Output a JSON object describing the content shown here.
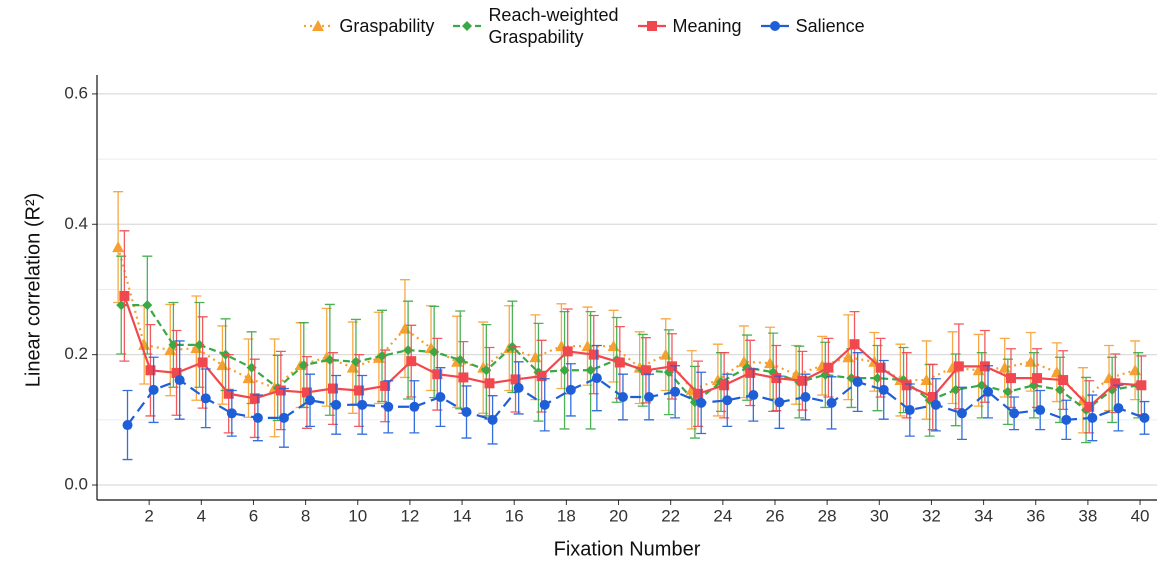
{
  "chart_data": {
    "type": "errorbar-line",
    "x_label": "Fixation Number",
    "y_label": "Linear correlation (R²)",
    "x": [
      1,
      2,
      3,
      4,
      5,
      6,
      7,
      8,
      9,
      10,
      11,
      12,
      13,
      14,
      15,
      16,
      17,
      18,
      19,
      20,
      21,
      22,
      23,
      24,
      25,
      26,
      27,
      28,
      29,
      30,
      31,
      32,
      33,
      34,
      35,
      36,
      37,
      38,
      39,
      40
    ],
    "xlim": [
      0,
      40.65
    ],
    "xticks": [
      2,
      4,
      6,
      8,
      10,
      12,
      14,
      16,
      18,
      20,
      22,
      24,
      26,
      28,
      30,
      32,
      34,
      36,
      38,
      40
    ],
    "ylim": [
      -0.023,
      0.629
    ],
    "yticks": [
      {
        "value": 0,
        "label": "0.0"
      },
      0.2,
      0.4,
      0.6
    ],
    "y_minor_grid": [
      0.1,
      0.3,
      0.5
    ],
    "grid": true,
    "legend": "top",
    "series": [
      {
        "name": "Graspability",
        "color": "#f5a030",
        "linestyle": "dotted",
        "marker": "triangle",
        "offset": -0.19,
        "values": [
          0.365,
          0.215,
          0.207,
          0.21,
          0.184,
          0.164,
          0.149,
          0.184,
          0.196,
          0.18,
          0.195,
          0.24,
          0.21,
          0.189,
          0.18,
          0.21,
          0.196,
          0.213,
          0.213,
          0.213,
          0.18,
          0.2,
          0.146,
          0.161,
          0.189,
          0.187,
          0.169,
          0.183,
          0.196,
          0.189,
          0.161,
          0.161,
          0.18,
          0.176,
          0.18,
          0.189,
          0.173,
          0.13,
          0.164,
          0.176
        ],
        "errors": [
          0.085,
          0.06,
          0.07,
          0.08,
          0.06,
          0.06,
          0.075,
          0.065,
          0.075,
          0.07,
          0.07,
          0.075,
          0.065,
          0.07,
          0.07,
          0.065,
          0.065,
          0.065,
          0.06,
          0.055,
          0.055,
          0.055,
          0.06,
          0.055,
          0.055,
          0.055,
          0.045,
          0.045,
          0.065,
          0.045,
          0.055,
          0.06,
          0.055,
          0.055,
          0.045,
          0.045,
          0.045,
          0.05,
          0.05,
          0.045
        ]
      },
      {
        "name": "Reach-weighted\nGraspability",
        "color": "#3aa845",
        "linestyle": "dashed",
        "marker": "diamond",
        "offset": -0.07,
        "values": [
          0.276,
          0.276,
          0.215,
          0.215,
          0.2,
          0.18,
          0.149,
          0.184,
          0.192,
          0.189,
          0.198,
          0.207,
          0.204,
          0.192,
          0.176,
          0.212,
          0.173,
          0.176,
          0.176,
          0.192,
          0.176,
          0.173,
          0.127,
          0.158,
          0.18,
          0.173,
          0.158,
          0.169,
          0.164,
          0.164,
          0.161,
          0.13,
          0.146,
          0.153,
          0.143,
          0.153,
          0.146,
          0.115,
          0.146,
          0.153
        ],
        "errors": [
          0.075,
          0.075,
          0.065,
          0.065,
          0.055,
          0.055,
          0.05,
          0.065,
          0.085,
          0.065,
          0.07,
          0.075,
          0.07,
          0.075,
          0.07,
          0.07,
          0.075,
          0.09,
          0.09,
          0.065,
          0.055,
          0.065,
          0.055,
          0.045,
          0.05,
          0.06,
          0.055,
          0.05,
          0.045,
          0.05,
          0.05,
          0.055,
          0.055,
          0.05,
          0.05,
          0.05,
          0.05,
          0.05,
          0.05,
          0.05
        ]
      },
      {
        "name": "Meaning",
        "color": "#f0484e",
        "linestyle": "solid",
        "marker": "square",
        "offset": 0.05,
        "values": [
          0.29,
          0.176,
          0.172,
          0.188,
          0.14,
          0.133,
          0.145,
          0.142,
          0.148,
          0.145,
          0.152,
          0.19,
          0.17,
          0.165,
          0.156,
          0.162,
          0.167,
          0.205,
          0.2,
          0.188,
          0.176,
          0.182,
          0.14,
          0.153,
          0.172,
          0.164,
          0.16,
          0.18,
          0.216,
          0.18,
          0.153,
          0.135,
          0.182,
          0.182,
          0.164,
          0.164,
          0.161,
          0.12,
          0.156,
          0.153
        ],
        "errors": [
          0.1,
          0.07,
          0.065,
          0.07,
          0.06,
          0.06,
          0.06,
          0.055,
          0.055,
          0.055,
          0.055,
          0.055,
          0.055,
          0.055,
          0.055,
          0.05,
          0.055,
          0.065,
          0.06,
          0.055,
          0.05,
          0.05,
          0.05,
          0.05,
          0.05,
          0.05,
          0.045,
          0.045,
          0.05,
          0.045,
          0.05,
          0.05,
          0.065,
          0.055,
          0.045,
          0.045,
          0.045,
          0.04,
          0.045,
          0.045
        ]
      },
      {
        "name": "Salience",
        "color": "#1e5fd8",
        "linestyle": "longdash",
        "marker": "circle",
        "offset": 0.17,
        "values": [
          0.092,
          0.146,
          0.161,
          0.133,
          0.11,
          0.103,
          0.103,
          0.13,
          0.123,
          0.123,
          0.12,
          0.12,
          0.135,
          0.112,
          0.1,
          0.149,
          0.123,
          0.146,
          0.164,
          0.135,
          0.135,
          0.143,
          0.126,
          0.13,
          0.138,
          0.127,
          0.135,
          0.126,
          0.158,
          0.146,
          0.115,
          0.123,
          0.11,
          0.143,
          0.11,
          0.115,
          0.1,
          0.103,
          0.118,
          0.103
        ],
        "errors": [
          0.053,
          0.05,
          0.06,
          0.045,
          0.035,
          0.035,
          0.045,
          0.04,
          0.045,
          0.045,
          0.04,
          0.04,
          0.045,
          0.04,
          0.037,
          0.04,
          0.04,
          0.04,
          0.05,
          0.035,
          0.035,
          0.04,
          0.047,
          0.04,
          0.04,
          0.04,
          0.035,
          0.04,
          0.045,
          0.045,
          0.04,
          0.04,
          0.04,
          0.04,
          0.025,
          0.03,
          0.03,
          0.035,
          0.035,
          0.025
        ]
      }
    ]
  }
}
